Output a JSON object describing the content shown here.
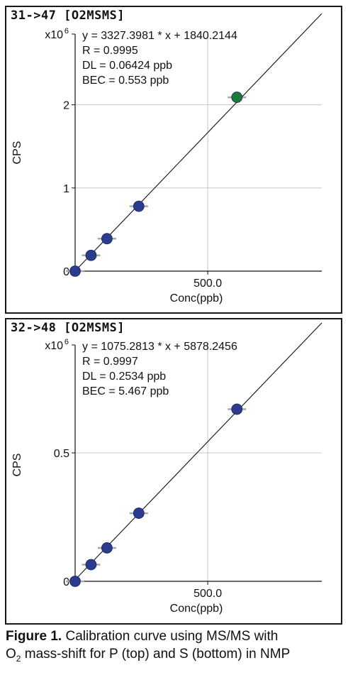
{
  "chart_data": [
    {
      "type": "scatter",
      "title": "31->47  [O2MSMS]",
      "xlabel": "Conc(ppb)",
      "ylabel": "CPS",
      "y_multiplier_label": "x10",
      "y_multiplier_exp": "6",
      "xlim": [
        0,
        930
      ],
      "ylim": [
        0,
        2.85
      ],
      "x_ticks": [
        500
      ],
      "x_tick_labels": [
        "500.0"
      ],
      "y_ticks": [
        0,
        1,
        2
      ],
      "y_tick_labels": [
        "0",
        "1",
        "2"
      ],
      "grid": true,
      "annotations": [
        "y = 3327.3981 * x  + 1840.2144",
        "R =  0.9995",
        "DL = 0.06424 ppb",
        "BEC = 0.553 ppb"
      ],
      "fit": {
        "slope": 3327.3981,
        "intercept": 1840.2144
      },
      "points": [
        {
          "x": 0,
          "y": 0.0,
          "color": "#2b3c8c"
        },
        {
          "x": 60,
          "y": 0.19,
          "color": "#2b3c8c"
        },
        {
          "x": 120,
          "y": 0.39,
          "color": "#2b3c8c"
        },
        {
          "x": 240,
          "y": 0.78,
          "color": "#2b3c8c"
        },
        {
          "x": 610,
          "y": 2.09,
          "color": "#1a7a3a"
        }
      ]
    },
    {
      "type": "scatter",
      "title": "32->48  [O2MSMS]",
      "xlabel": "Conc(ppb)",
      "ylabel": "CPS",
      "y_multiplier_label": "x10",
      "y_multiplier_exp": "6",
      "xlim": [
        0,
        930
      ],
      "ylim": [
        0,
        0.92
      ],
      "x_ticks": [
        500
      ],
      "x_tick_labels": [
        "500.0"
      ],
      "y_ticks": [
        0,
        0.5
      ],
      "y_tick_labels": [
        "0",
        "0.5"
      ],
      "grid": true,
      "annotations": [
        "y = 1075.2813 * x  + 5878.2456",
        "R =  0.9997",
        "DL = 0.2534 ppb",
        "BEC = 5.467 ppb"
      ],
      "fit": {
        "slope": 1075.2813,
        "intercept": 5878.2456
      },
      "points": [
        {
          "x": 0,
          "y": 0.0,
          "color": "#2b3c8c"
        },
        {
          "x": 60,
          "y": 0.065,
          "color": "#2b3c8c"
        },
        {
          "x": 120,
          "y": 0.13,
          "color": "#2b3c8c"
        },
        {
          "x": 240,
          "y": 0.265,
          "color": "#2b3c8c"
        },
        {
          "x": 610,
          "y": 0.67,
          "color": "#2b3c8c"
        }
      ]
    }
  ],
  "caption": {
    "label": "Figure 1.",
    "line1": " Calibration curve using MS/MS with",
    "o": "O",
    "sub": "2",
    "line2": " mass-shift for P (top) and S (bottom) in NMP"
  }
}
